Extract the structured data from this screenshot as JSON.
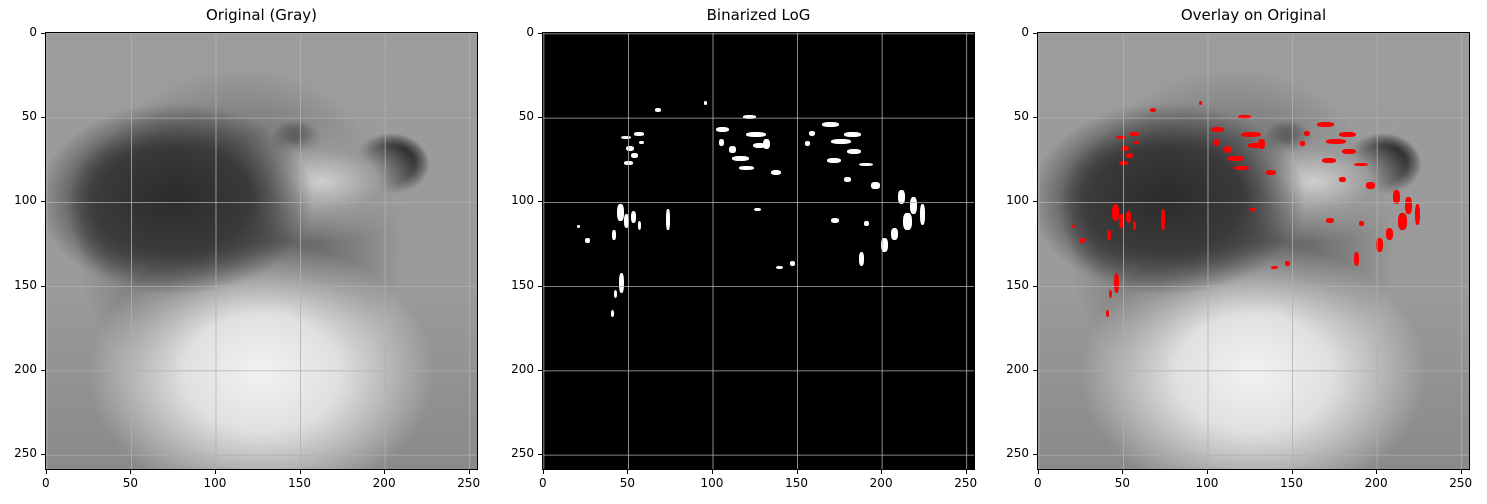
{
  "panels": [
    {
      "title": "Original (Gray)"
    },
    {
      "title": "Binarized LoG"
    },
    {
      "title": "Overlay on Original"
    }
  ],
  "axes": {
    "x_ticks": [
      "0",
      "50",
      "100",
      "150",
      "200",
      "250"
    ],
    "y_ticks": [
      "0",
      "50",
      "100",
      "150",
      "200",
      "250"
    ]
  },
  "colors": {
    "edges_white": "#ffffff",
    "edges_red": "#ff0000",
    "grid": "#b0b0b0"
  }
}
